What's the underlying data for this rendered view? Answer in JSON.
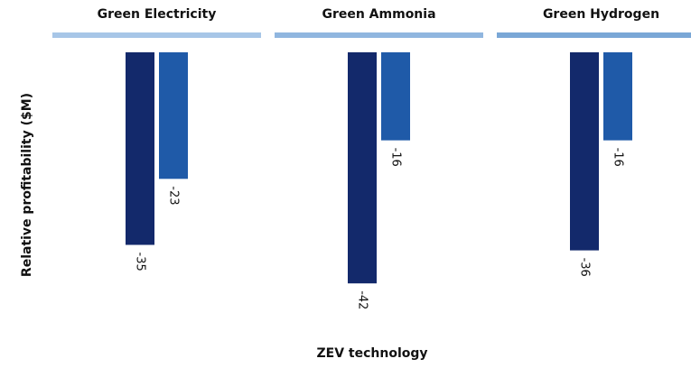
{
  "chart_data": {
    "type": "bar",
    "ylabel": "Relative profitability ($M)",
    "xlabel": "ZEV technology",
    "categories": [
      "Green Electricity",
      "Green Ammonia",
      "Green Hydrogen"
    ],
    "panel_colors": [
      "#a7c6e7",
      "#90b6df",
      "#7aa7d6"
    ],
    "series": [
      {
        "color": "#13296b",
        "values": [
          -35,
          -42,
          -36
        ]
      },
      {
        "color": "#1f5aa8",
        "values": [
          -23,
          -16,
          -16
        ]
      }
    ],
    "ylim": [
      -50,
      0
    ]
  }
}
